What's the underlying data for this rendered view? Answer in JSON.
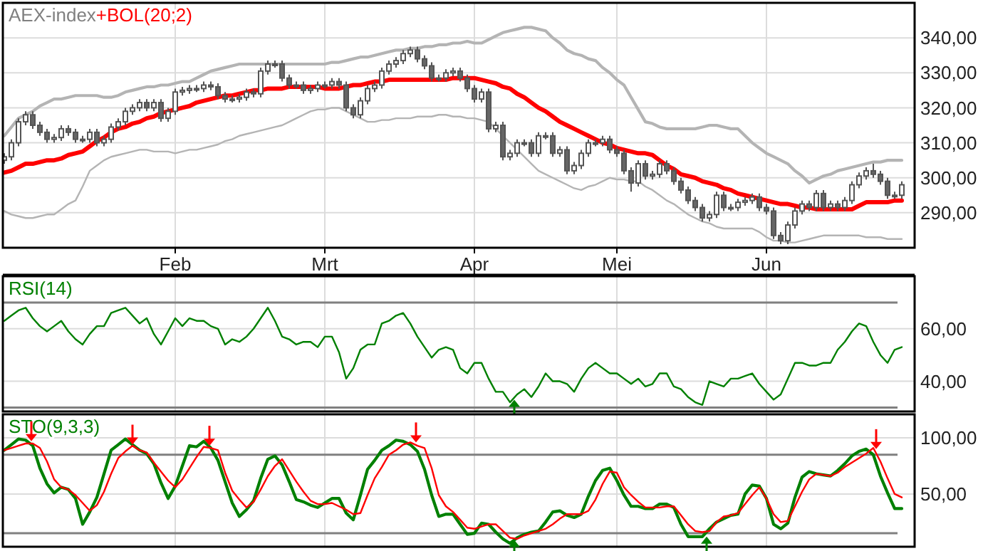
{
  "chart_data": [
    {
      "type": "candlestick",
      "title": "AEX-index",
      "legend": "top left",
      "grid": true,
      "categories": [
        null,
        null,
        null,
        null,
        null,
        null,
        null,
        null,
        null,
        null,
        null,
        null,
        null,
        null,
        null,
        null,
        null,
        null,
        null,
        null,
        null,
        null,
        null,
        null,
        "Feb",
        null,
        null,
        null,
        null,
        null,
        null,
        null,
        null,
        null,
        null,
        null,
        null,
        null,
        null,
        null,
        null,
        null,
        null,
        null,
        null,
        "Mrt",
        null,
        null,
        null,
        null,
        null,
        null,
        null,
        null,
        null,
        null,
        null,
        null,
        null,
        null,
        null,
        null,
        null,
        null,
        null,
        null,
        "Apr",
        null,
        null,
        null,
        null,
        null,
        null,
        null,
        null,
        null,
        null,
        null,
        null,
        null,
        null,
        null,
        null,
        null,
        null,
        null,
        "Mei",
        null,
        null,
        null,
        null,
        null,
        null,
        null,
        null,
        null,
        null,
        null,
        null,
        null,
        null,
        null,
        null,
        null,
        null,
        null,
        null,
        "Jun",
        null,
        null,
        null,
        null,
        null,
        null,
        null,
        null,
        null,
        null,
        null,
        null,
        null,
        null,
        null,
        null,
        null,
        null,
        null
      ],
      "ylim": [
        280,
        350
      ],
      "yticks": [
        {
          "value": 290,
          "label": "290,00"
        },
        {
          "value": 300,
          "label": "300,00"
        },
        {
          "value": 310,
          "label": "310,00"
        },
        {
          "value": 320,
          "label": "320,00"
        },
        {
          "value": 330,
          "label": "330,00"
        },
        {
          "value": 340,
          "label": "340,00"
        }
      ],
      "ohlc": [
        [
          305,
          307,
          304,
          306
        ],
        [
          306,
          311,
          305,
          310
        ],
        [
          310,
          317,
          309,
          316
        ],
        [
          316,
          319,
          315,
          318
        ],
        [
          318,
          319,
          314,
          315
        ],
        [
          315,
          316,
          312,
          313
        ],
        [
          313,
          314,
          310,
          311
        ],
        [
          311,
          312.5,
          310,
          311.5
        ],
        [
          311.5,
          315,
          310.5,
          314
        ],
        [
          314,
          315,
          312,
          313
        ],
        [
          313,
          314,
          310,
          311
        ],
        [
          311,
          312,
          310,
          311
        ],
        [
          311,
          314,
          310,
          313
        ],
        [
          313,
          314,
          309,
          310
        ],
        [
          310,
          312,
          309,
          311
        ],
        [
          311,
          315.5,
          310,
          314.5
        ],
        [
          314.5,
          317,
          313.5,
          316
        ],
        [
          316,
          320,
          315,
          319
        ],
        [
          319,
          321,
          318,
          320
        ],
        [
          320,
          322.5,
          319,
          321.5
        ],
        [
          321.5,
          322.5,
          319,
          320
        ],
        [
          320,
          322.5,
          319,
          321.5
        ],
        [
          321.5,
          322.5,
          316,
          317
        ],
        [
          317,
          320,
          316,
          319
        ],
        [
          319,
          325.5,
          318,
          324.5
        ],
        [
          324.5,
          326,
          323.5,
          325
        ],
        [
          325,
          326.5,
          324,
          325.5
        ],
        [
          325.5,
          326.5,
          324.5,
          325.5
        ],
        [
          325.5,
          327.5,
          324.5,
          326.5
        ],
        [
          326.5,
          327.5,
          325,
          326
        ],
        [
          326,
          327,
          322.5,
          323.5
        ],
        [
          323.5,
          324.5,
          321.5,
          322.5
        ],
        [
          322.5,
          323.5,
          321.5,
          322.5
        ],
        [
          322.5,
          324,
          321.5,
          323
        ],
        [
          323,
          325.5,
          322,
          324.5
        ],
        [
          324.5,
          325.5,
          323,
          324
        ],
        [
          324,
          331.5,
          323,
          330.5
        ],
        [
          330.5,
          333.5,
          329.5,
          332.5
        ],
        [
          332.5,
          333.5,
          331.5,
          332.5
        ],
        [
          332.5,
          333.5,
          327.5,
          328.5
        ],
        [
          328.5,
          329.5,
          325.5,
          326.5
        ],
        [
          326.5,
          327.5,
          325.5,
          326.5
        ],
        [
          326.5,
          327.5,
          324,
          325
        ],
        [
          325,
          326.5,
          324,
          325.5
        ],
        [
          325.5,
          327.5,
          324.5,
          326.5
        ],
        [
          326.5,
          327.5,
          325.5,
          326.5
        ],
        [
          326.5,
          328.5,
          325.5,
          327.5
        ],
        [
          327.5,
          328.5,
          325.5,
          326.5
        ],
        [
          326.5,
          327.5,
          319,
          320
        ],
        [
          320,
          321,
          317,
          318
        ],
        [
          318,
          323,
          317,
          322
        ],
        [
          322,
          326.5,
          321,
          325.5
        ],
        [
          325.5,
          327.5,
          324.5,
          326.5
        ],
        [
          326.5,
          331.5,
          325.5,
          330.5
        ],
        [
          330.5,
          333.5,
          329.5,
          332.5
        ],
        [
          332.5,
          334.5,
          331.5,
          333.5
        ],
        [
          333.5,
          336.5,
          332.5,
          335.5
        ],
        [
          335.5,
          337.5,
          334.5,
          336.5
        ],
        [
          336.5,
          337.5,
          333,
          334
        ],
        [
          334,
          335,
          331,
          332
        ],
        [
          332,
          333,
          327.5,
          328.5
        ],
        [
          328.5,
          329.5,
          327.5,
          328.5
        ],
        [
          328.5,
          331,
          327.5,
          330
        ],
        [
          330,
          331.5,
          329,
          330.5
        ],
        [
          330.5,
          331.5,
          327.5,
          328.5
        ],
        [
          328.5,
          329.5,
          324.5,
          325.5
        ],
        [
          325.5,
          326.5,
          321.5,
          322.5
        ],
        [
          322.5,
          325.5,
          321.5,
          324.5
        ],
        [
          324.5,
          325.5,
          313,
          314
        ],
        [
          314,
          316,
          313,
          315
        ],
        [
          315,
          316,
          305,
          306
        ],
        [
          306,
          308,
          305,
          307
        ],
        [
          307,
          311,
          306,
          310
        ],
        [
          310,
          311,
          309,
          310
        ],
        [
          310,
          311,
          306,
          307
        ],
        [
          307,
          313,
          306,
          312
        ],
        [
          312,
          313,
          311,
          312
        ],
        [
          312,
          313,
          306,
          307
        ],
        [
          307,
          309,
          306,
          308
        ],
        [
          308,
          309,
          301,
          302
        ],
        [
          302,
          304.5,
          301,
          303.5
        ],
        [
          303.5,
          308,
          302.5,
          307
        ],
        [
          307,
          311,
          306,
          310
        ],
        [
          310,
          311,
          309,
          310
        ],
        [
          310,
          312,
          309,
          311
        ],
        [
          311,
          312,
          307,
          308
        ],
        [
          308,
          309,
          306,
          307
        ],
        [
          307,
          308,
          301,
          302
        ],
        [
          302,
          303,
          296,
          298.5
        ],
        [
          298.5,
          305,
          297.5,
          304
        ],
        [
          304,
          305,
          299.5,
          300.5
        ],
        [
          300.5,
          302,
          299.5,
          301
        ],
        [
          301,
          305,
          300,
          304
        ],
        [
          304,
          305,
          301,
          302
        ],
        [
          302,
          303,
          298,
          299
        ],
        [
          299,
          300,
          295.5,
          296.5
        ],
        [
          296.5,
          297.5,
          292.5,
          293.5
        ],
        [
          293.5,
          294.5,
          290.5,
          291.5
        ],
        [
          291.5,
          292.5,
          287.5,
          288.5
        ],
        [
          288.5,
          290.5,
          287.5,
          289.5
        ],
        [
          289.5,
          296,
          288.5,
          295
        ],
        [
          295,
          296,
          290.5,
          291.5
        ],
        [
          291.5,
          292.5,
          290.5,
          291.5
        ],
        [
          291.5,
          294,
          290.5,
          293
        ],
        [
          293,
          294.5,
          292,
          293.5
        ],
        [
          293.5,
          295.5,
          292.5,
          294.5
        ],
        [
          294.5,
          295.5,
          290.5,
          291.5
        ],
        [
          291.5,
          292.5,
          289.5,
          290.5
        ],
        [
          290.5,
          291.5,
          282.5,
          283.5
        ],
        [
          283.5,
          284.5,
          281,
          282
        ],
        [
          282,
          287.5,
          281,
          286.5
        ],
        [
          286.5,
          291.5,
          285.5,
          290.5
        ],
        [
          290.5,
          293.5,
          289.5,
          292.5
        ],
        [
          292.5,
          293.5,
          290.5,
          291.5
        ],
        [
          291.5,
          296.5,
          290.5,
          295.5
        ],
        [
          295.5,
          296.5,
          290.5,
          291.5
        ],
        [
          291.5,
          293.5,
          290.5,
          292.5
        ],
        [
          292.5,
          293.5,
          290.5,
          291.5
        ],
        [
          291.5,
          294.5,
          290.5,
          293.5
        ],
        [
          293.5,
          299,
          292.5,
          298
        ],
        [
          298,
          301.5,
          297,
          300.5
        ],
        [
          300.5,
          303,
          299.5,
          302
        ],
        [
          302,
          304,
          300,
          301
        ],
        [
          301,
          302,
          298,
          299
        ],
        [
          299,
          300,
          294,
          295
        ],
        [
          295,
          296,
          294,
          295
        ],
        [
          295,
          299,
          294,
          298
        ]
      ],
      "series": [
        {
          "type": "line",
          "name": "+BOL(20;2)",
          "color": "#ff0000",
          "values": [
            301.5,
            302,
            303,
            304,
            304,
            304.5,
            305,
            305,
            305.5,
            306.5,
            307,
            307.5,
            309,
            310.5,
            311.5,
            313,
            314,
            314.5,
            315.5,
            316,
            317,
            317.5,
            318.5,
            319,
            319.5,
            320,
            320.5,
            321.5,
            322,
            322.5,
            323,
            323.5,
            323.5,
            324,
            324.5,
            325,
            325,
            325.5,
            325.5,
            325.5,
            326,
            326,
            326,
            326,
            326,
            325.5,
            325.5,
            325.5,
            326,
            326.5,
            326.5,
            327,
            327.5,
            327.5,
            328,
            328,
            328,
            328,
            328,
            328,
            328,
            328,
            328,
            328.5,
            328.5,
            328.5,
            328.5,
            328,
            327.5,
            327,
            326,
            325.5,
            324,
            323,
            321.5,
            320,
            319,
            317.5,
            316,
            315,
            314,
            313,
            312,
            311,
            310,
            309.5,
            308.5,
            308,
            307.5,
            307,
            307,
            306.5,
            305,
            303.5,
            302.5,
            301,
            300.5,
            300,
            299,
            298.5,
            298,
            297,
            296.5,
            295.5,
            295,
            294.5,
            294,
            293.5,
            293,
            292.5,
            292.5,
            292,
            291.5,
            291.5,
            291,
            291,
            291,
            291,
            291,
            291,
            292,
            293,
            293,
            293,
            293,
            293.5,
            293.5
          ]
        },
        {
          "type": "line",
          "color": "#b4b4b4",
          "values": [
            312,
            314.5,
            317,
            318,
            319,
            320.5,
            321.5,
            322.5,
            322.5,
            323,
            323.5,
            323.5,
            323.5,
            323.5,
            323,
            323,
            323.5,
            324.5,
            325,
            325.5,
            326,
            326,
            326.5,
            326.5,
            327,
            327.5,
            327.5,
            328.5,
            329.5,
            330.5,
            331,
            331.5,
            332,
            332.5,
            332.5,
            332.5,
            332.5,
            332.5,
            332.5,
            332.5,
            332.5,
            332.5,
            332.5,
            332.5,
            332.5,
            332.5,
            333,
            333,
            333.5,
            334,
            334.5,
            334.5,
            335,
            335.5,
            336,
            336.5,
            336.5,
            337,
            337,
            337.5,
            337.5,
            338,
            338,
            338.5,
            338.5,
            339,
            338.5,
            338.5,
            339.5,
            340.5,
            341.5,
            342,
            342.5,
            343,
            343,
            342.5,
            342,
            340,
            338.5,
            336.5,
            335.5,
            335,
            334,
            333.5,
            331.5,
            330,
            328,
            326.5,
            323,
            319.5,
            316,
            315.5,
            314.5,
            314,
            314,
            314,
            314,
            314,
            314.5,
            315,
            315,
            314.5,
            314,
            314,
            312,
            310,
            308.5,
            307,
            306,
            305,
            304,
            302,
            300.5,
            298.5,
            299.5,
            300.5,
            301,
            302,
            302.5,
            303,
            303.5,
            304,
            304.5,
            304.5,
            305,
            305,
            305
          ]
        },
        {
          "type": "line",
          "color": "#b4b4b4",
          "values": [
            290.5,
            289.5,
            289,
            288.5,
            288.5,
            289,
            289.5,
            289.5,
            291,
            292.5,
            293.5,
            297.5,
            302,
            303.5,
            305,
            306,
            306.5,
            307,
            307.5,
            308,
            308,
            307.5,
            307.5,
            307.5,
            307,
            307.5,
            308,
            308,
            308.5,
            309,
            309.5,
            310.5,
            311,
            312,
            312.5,
            313,
            313.5,
            314,
            314.5,
            315,
            316,
            317,
            318,
            319,
            319.5,
            319.5,
            320,
            320,
            319,
            318,
            317,
            316,
            316,
            316.5,
            316.5,
            317,
            317,
            317,
            317.5,
            317.5,
            317.5,
            318,
            318,
            317.5,
            317.5,
            317,
            317,
            316.5,
            316,
            314,
            312,
            310,
            308,
            306,
            304,
            302,
            301,
            300,
            299,
            298,
            297,
            296.5,
            297.5,
            298,
            299,
            300,
            299.5,
            299.5,
            299,
            299,
            297.5,
            296.5,
            295,
            293.5,
            292.5,
            291,
            289.5,
            288.5,
            287.5,
            287,
            286,
            285.5,
            285.5,
            285.5,
            285.5,
            285.5,
            284.5,
            283,
            282,
            282,
            281.5,
            281.5,
            282,
            282.5,
            283,
            283.5,
            283.5,
            283.5,
            283.5,
            283.5,
            283.5,
            283,
            283,
            283,
            282.5,
            282.5,
            282.5
          ]
        }
      ]
    },
    {
      "type": "line",
      "legend": "top left",
      "grid": true,
      "tick_labels": "y",
      "categories": [
        null,
        null,
        null,
        null,
        null,
        null,
        null,
        null,
        null,
        null,
        null,
        null,
        null,
        null,
        null,
        null,
        null,
        null,
        null,
        null,
        null,
        null,
        null,
        null,
        null,
        null,
        null,
        null,
        null,
        null,
        null,
        null,
        null,
        null,
        null,
        null,
        null,
        null,
        null,
        null,
        null,
        null,
        null,
        null,
        null,
        null,
        null,
        null,
        null,
        null,
        null,
        null,
        null,
        null,
        null,
        null,
        null,
        null,
        null,
        null,
        null,
        null,
        null,
        null,
        null,
        null,
        null,
        null,
        null,
        null,
        null,
        null,
        null,
        null,
        null,
        null,
        null,
        null,
        null,
        null,
        null,
        null,
        null,
        null,
        null,
        null,
        null,
        null,
        null,
        null,
        null,
        null,
        null,
        null,
        null,
        null,
        null,
        null,
        null,
        null,
        null,
        null,
        null,
        null,
        null,
        null,
        null,
        null,
        null,
        null,
        null,
        null,
        null,
        null,
        null,
        null,
        null,
        null,
        null,
        null,
        null,
        null,
        null,
        null,
        null,
        null,
        null
      ],
      "ylim": [
        28.5,
        80
      ],
      "yticks": [
        {
          "value": 40,
          "label": "40,00"
        },
        {
          "value": 60,
          "label": "60,00"
        }
      ],
      "ref_lines": [
        {
          "axis": "y",
          "value": 70,
          "color": "#808080"
        },
        {
          "axis": "y",
          "value": 30,
          "color": "#808080"
        }
      ],
      "series": [
        {
          "name": "RSI(14)",
          "color": "#008000",
          "values": [
            63,
            65,
            67,
            68,
            64,
            61,
            59,
            61,
            63,
            59,
            56,
            54,
            58,
            61,
            61,
            66,
            67,
            68,
            65,
            62,
            64,
            58,
            54,
            59,
            64,
            61,
            64,
            63,
            63,
            61,
            60,
            54,
            56,
            55,
            57,
            60,
            64,
            68,
            63,
            57,
            56,
            54,
            55,
            55,
            53,
            57,
            57,
            51,
            41,
            45,
            52,
            54,
            54,
            62,
            63,
            65,
            66,
            62,
            57,
            53,
            49,
            52,
            53,
            52,
            45,
            43,
            47,
            47,
            41,
            36,
            36,
            32,
            35,
            37,
            34,
            38,
            43,
            40,
            40,
            39,
            36,
            41,
            45,
            47,
            45,
            43,
            43,
            41,
            39,
            41,
            38,
            39,
            43,
            43,
            38,
            37,
            34,
            32,
            31,
            40,
            39,
            38,
            41,
            41,
            42,
            43,
            39,
            36,
            33,
            35,
            41,
            47,
            47,
            46,
            46,
            47,
            47,
            52,
            55,
            59,
            62,
            61,
            55,
            50,
            47,
            52,
            53
          ]
        }
      ]
    },
    {
      "type": "line",
      "legend": "top left",
      "grid": true,
      "tick_labels": "y",
      "categories": [
        null,
        null,
        null,
        null,
        null,
        null,
        null,
        null,
        null,
        null,
        null,
        null,
        null,
        null,
        null,
        null,
        null,
        null,
        null,
        null,
        null,
        null,
        null,
        null,
        null,
        null,
        null,
        null,
        null,
        null,
        null,
        null,
        null,
        null,
        null,
        null,
        null,
        null,
        null,
        null,
        null,
        null,
        null,
        null,
        null,
        null,
        null,
        null,
        null,
        null,
        null,
        null,
        null,
        null,
        null,
        null,
        null,
        null,
        null,
        null,
        null,
        null,
        null,
        null,
        null,
        null,
        null,
        null,
        null,
        null,
        null,
        null,
        null,
        null,
        null,
        null,
        null,
        null,
        null,
        null,
        null,
        null,
        null,
        null,
        null,
        null,
        null,
        null,
        null,
        null,
        null,
        null,
        null,
        null,
        null,
        null,
        null,
        null,
        null,
        null,
        null,
        null,
        null,
        null,
        null,
        null,
        null,
        null,
        null,
        null,
        null,
        null,
        null,
        null,
        null,
        null,
        null,
        null,
        null,
        null,
        null,
        null,
        null,
        null,
        null,
        null,
        null
      ],
      "ylim": [
        3,
        121
      ],
      "yticks": [
        {
          "value": 50,
          "label": "50,00"
        },
        {
          "value": 100,
          "label": "100,00"
        }
      ],
      "ref_lines": [
        {
          "axis": "y",
          "value": 85,
          "color": "#808080"
        },
        {
          "axis": "y",
          "value": 15,
          "color": "#808080"
        }
      ],
      "series": [
        {
          "name": "STO(9,3,3)",
          "color": "#008000",
          "values": [
            89,
            94,
            99,
            98,
            93,
            73,
            59,
            51,
            56,
            54,
            46,
            23,
            34,
            47,
            68,
            89,
            94,
            99,
            94,
            89,
            86,
            77,
            60,
            46,
            57,
            75,
            93,
            92,
            97,
            91,
            80,
            61,
            42,
            30,
            36,
            44,
            64,
            81,
            84,
            76,
            61,
            45,
            43,
            40,
            38,
            42,
            46,
            46,
            33,
            27,
            49,
            72,
            80,
            89,
            93,
            98,
            97,
            94,
            88,
            72,
            49,
            30,
            32,
            32,
            23,
            14,
            15,
            24,
            23,
            16,
            10,
            6,
            11,
            14,
            16,
            17,
            25,
            34,
            35,
            31,
            29,
            32,
            48,
            62,
            71,
            73,
            62,
            49,
            39,
            39,
            37,
            37,
            41,
            41,
            38,
            23,
            12,
            12,
            12,
            19,
            25,
            28,
            31,
            32,
            50,
            58,
            57,
            46,
            23,
            19,
            24,
            47,
            65,
            70,
            68,
            67,
            66,
            71,
            77,
            84,
            88,
            90,
            85,
            66,
            51,
            37,
            37
          ]
        },
        {
          "color": "#ff0000",
          "values": [
            89,
            91,
            93,
            95,
            95,
            91,
            79,
            63,
            56,
            54,
            49,
            42,
            35,
            40,
            52,
            68,
            82,
            88,
            93,
            89,
            87,
            78,
            70,
            62,
            56,
            63,
            73,
            83,
            92,
            91,
            89,
            69,
            53,
            45,
            38,
            43,
            54,
            66,
            75,
            81,
            71,
            61,
            52,
            44,
            41,
            41,
            42,
            39,
            36,
            32,
            33,
            49,
            64,
            74,
            85,
            89,
            94,
            96,
            93,
            91,
            73,
            49,
            39,
            34,
            27,
            20,
            19,
            21,
            23,
            23,
            17,
            11,
            10,
            13,
            15,
            17,
            19,
            23,
            28,
            32,
            32,
            32,
            35,
            45,
            59,
            70,
            69,
            56,
            49,
            43,
            38,
            38,
            38,
            39,
            39,
            31,
            23,
            17,
            16,
            17,
            25,
            30,
            31,
            33,
            41,
            49,
            56,
            46,
            32,
            25,
            26,
            39,
            52,
            63,
            68,
            67,
            66,
            69,
            74,
            78,
            82,
            86,
            91,
            79,
            64,
            50,
            47
          ]
        }
      ]
    }
  ]
}
